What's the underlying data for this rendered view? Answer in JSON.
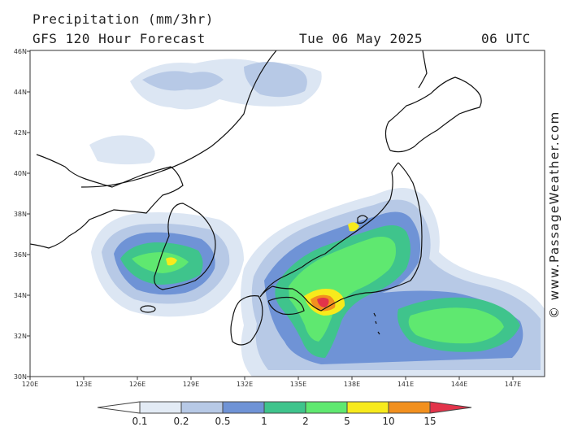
{
  "header": {
    "line1": "Precipitation (mm/3hr)",
    "line2": "GFS 120 Hour Forecast",
    "date": "Tue 06 May 2025",
    "time": "06 UTC"
  },
  "axes": {
    "lat_labels": [
      "30N",
      "32N",
      "34N",
      "36N",
      "38N",
      "40N",
      "42N",
      "44N",
      "46N"
    ],
    "lon_labels": [
      "120E",
      "123E",
      "126E",
      "129E",
      "132E",
      "135E",
      "138E",
      "141E",
      "144E",
      "147E"
    ]
  },
  "credit": "© www.PassageWeather.com",
  "legend": {
    "ticks": [
      "0.1",
      "0.2",
      "0.5",
      "1",
      "2",
      "5",
      "10",
      "15"
    ],
    "colors": [
      "#ffffff",
      "#e3ebf5",
      "#b7c9e6",
      "#6f93d6",
      "#3fc48c",
      "#5fe870",
      "#f7ea1c",
      "#f2901e",
      "#e2334a"
    ]
  },
  "colors": {
    "light": "#dce6f3",
    "pale_blue": "#b7c9e6",
    "blue": "#6f93d6",
    "teal": "#3fc48c",
    "green": "#5fe870",
    "yellow": "#f7ea1c",
    "orange": "#f2901e",
    "red": "#e2334a"
  }
}
